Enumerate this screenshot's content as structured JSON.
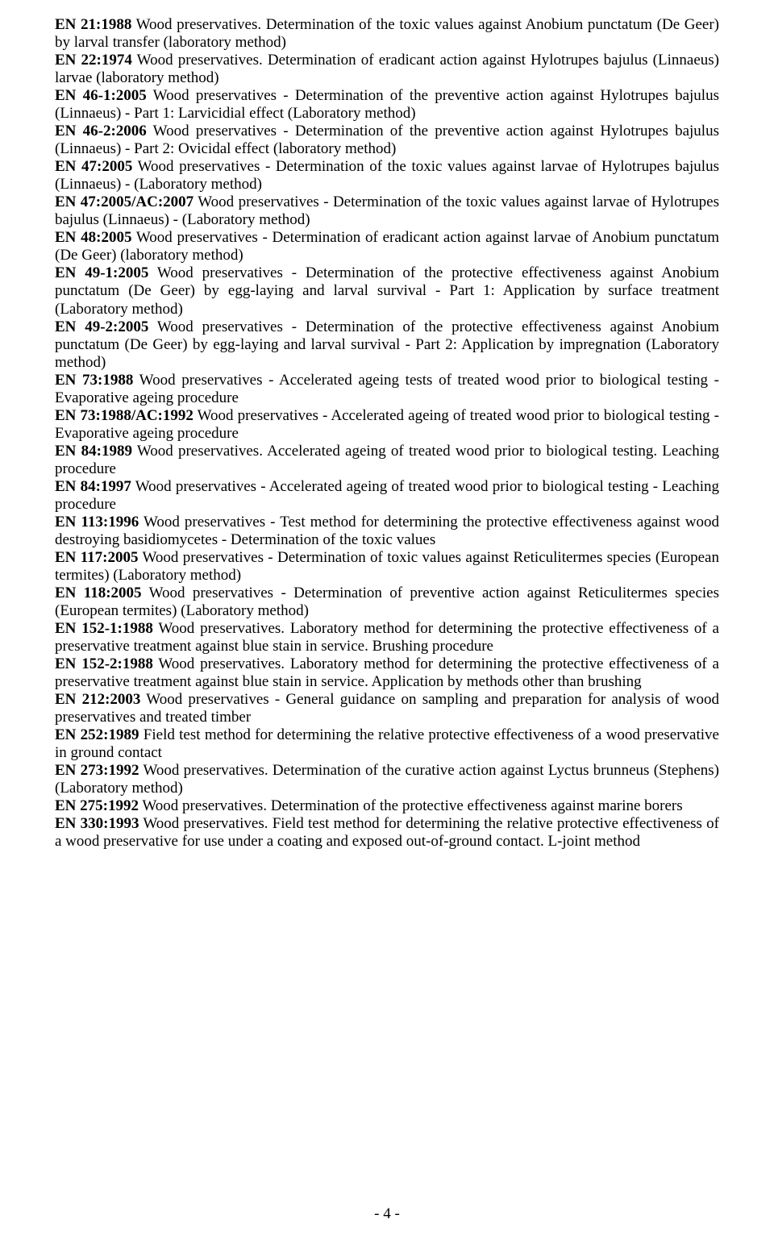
{
  "page_number": "- 4 -",
  "font": {
    "family": "Times New Roman",
    "size_pt": 14,
    "color": "#000000",
    "bold_weight": 700
  },
  "entries": [
    {
      "code": "EN 21:1988",
      "text": " Wood preservatives. Determination of the toxic values against Anobium punctatum (De Geer) by larval transfer (laboratory method)"
    },
    {
      "code": "EN 22:1974",
      "text": " Wood preservatives. Determination of eradicant action against Hylotrupes bajulus (Linnaeus) larvae (laboratory method)"
    },
    {
      "code": "EN 46-1:2005",
      "text": " Wood preservatives - Determination of the preventive action against Hylotrupes bajulus (Linnaeus) - Part 1: Larvicidial effect (Laboratory method)"
    },
    {
      "code": "EN 46-2:2006",
      "text": " Wood preservatives - Determination of the preventive action against Hylotrupes bajulus (Linnaeus) - Part 2: Ovicidal effect (laboratory method)"
    },
    {
      "code": "EN 47:2005",
      "text": " Wood preservatives - Determination of the toxic values against larvae of Hylotrupes bajulus (Linnaeus) - (Laboratory method)"
    },
    {
      "code": "EN 47:2005/AC:2007",
      "text": " Wood preservatives - Determination of the toxic values against larvae of Hylotrupes bajulus (Linnaeus) - (Laboratory method)"
    },
    {
      "code": "EN 48:2005",
      "text": " Wood preservatives - Determination of eradicant action against larvae of Anobium punctatum (De Geer) (laboratory method)"
    },
    {
      "code": "EN 49-1:2005",
      "text": " Wood preservatives - Determination of the protective effectiveness against Anobium punctatum (De Geer) by egg-laying and larval survival - Part 1: Application by surface treatment (Laboratory method)"
    },
    {
      "code": "EN 49-2:2005",
      "text": " Wood preservatives - Determination of the protective effectiveness against Anobium punctatum (De Geer) by egg-laying and larval survival - Part 2: Application by impregnation (Laboratory method)"
    },
    {
      "code": "EN 73:1988",
      "text": " Wood preservatives - Accelerated ageing tests of treated wood prior to biological testing - Evaporative ageing procedure"
    },
    {
      "code": "EN 73:1988/AC:1992",
      "text": " Wood preservatives - Accelerated ageing of treated wood prior to biological testing - Evaporative ageing procedure"
    },
    {
      "code": "EN 84:1989",
      "text": " Wood preservatives. Accelerated ageing of treated wood prior to biological testing. Leaching procedure"
    },
    {
      "code": "EN 84:1997",
      "text": " Wood preservatives - Accelerated ageing of treated wood prior to biological testing - Leaching procedure"
    },
    {
      "code": "EN 113:1996",
      "text": " Wood preservatives - Test method for determining the protective effectiveness against wood destroying basidiomycetes - Determination of the toxic values"
    },
    {
      "code": "EN 117:2005",
      "text": " Wood preservatives - Determination of toxic values against Reticulitermes species (European termites) (Laboratory method)"
    },
    {
      "code": "EN 118:2005",
      "text": " Wood preservatives - Determination of preventive action against Reticulitermes species (European termites) (Laboratory method)"
    },
    {
      "code": "EN 152-1:1988",
      "text": " Wood preservatives. Laboratory method for determining the protective effectiveness of a preservative treatment against blue stain in service. Brushing procedure"
    },
    {
      "code": "EN 152-2:1988",
      "text": " Wood preservatives. Laboratory method for determining the protective effectiveness of a preservative treatment against blue stain in service. Application by methods other than brushing"
    },
    {
      "code": "EN 212:2003",
      "text": " Wood preservatives - General guidance on sampling and preparation for analysis of wood preservatives and treated timber"
    },
    {
      "code": "EN 252:1989",
      "text": " Field test method for determining the relative protective effectiveness of a wood preservative in ground contact"
    },
    {
      "code": "EN 273:1992",
      "text": " Wood preservatives. Determination of the curative action against Lyctus brunneus (Stephens) (Laboratory method)"
    },
    {
      "code": "EN 275:1992",
      "text": " Wood preservatives. Determination of the protective effectiveness against marine borers"
    },
    {
      "code": "EN 330:1993",
      "text": " Wood preservatives. Field test method for determining the relative protective effectiveness of a wood preservative for use under a coating and exposed out-of-ground contact. L-joint method"
    }
  ]
}
